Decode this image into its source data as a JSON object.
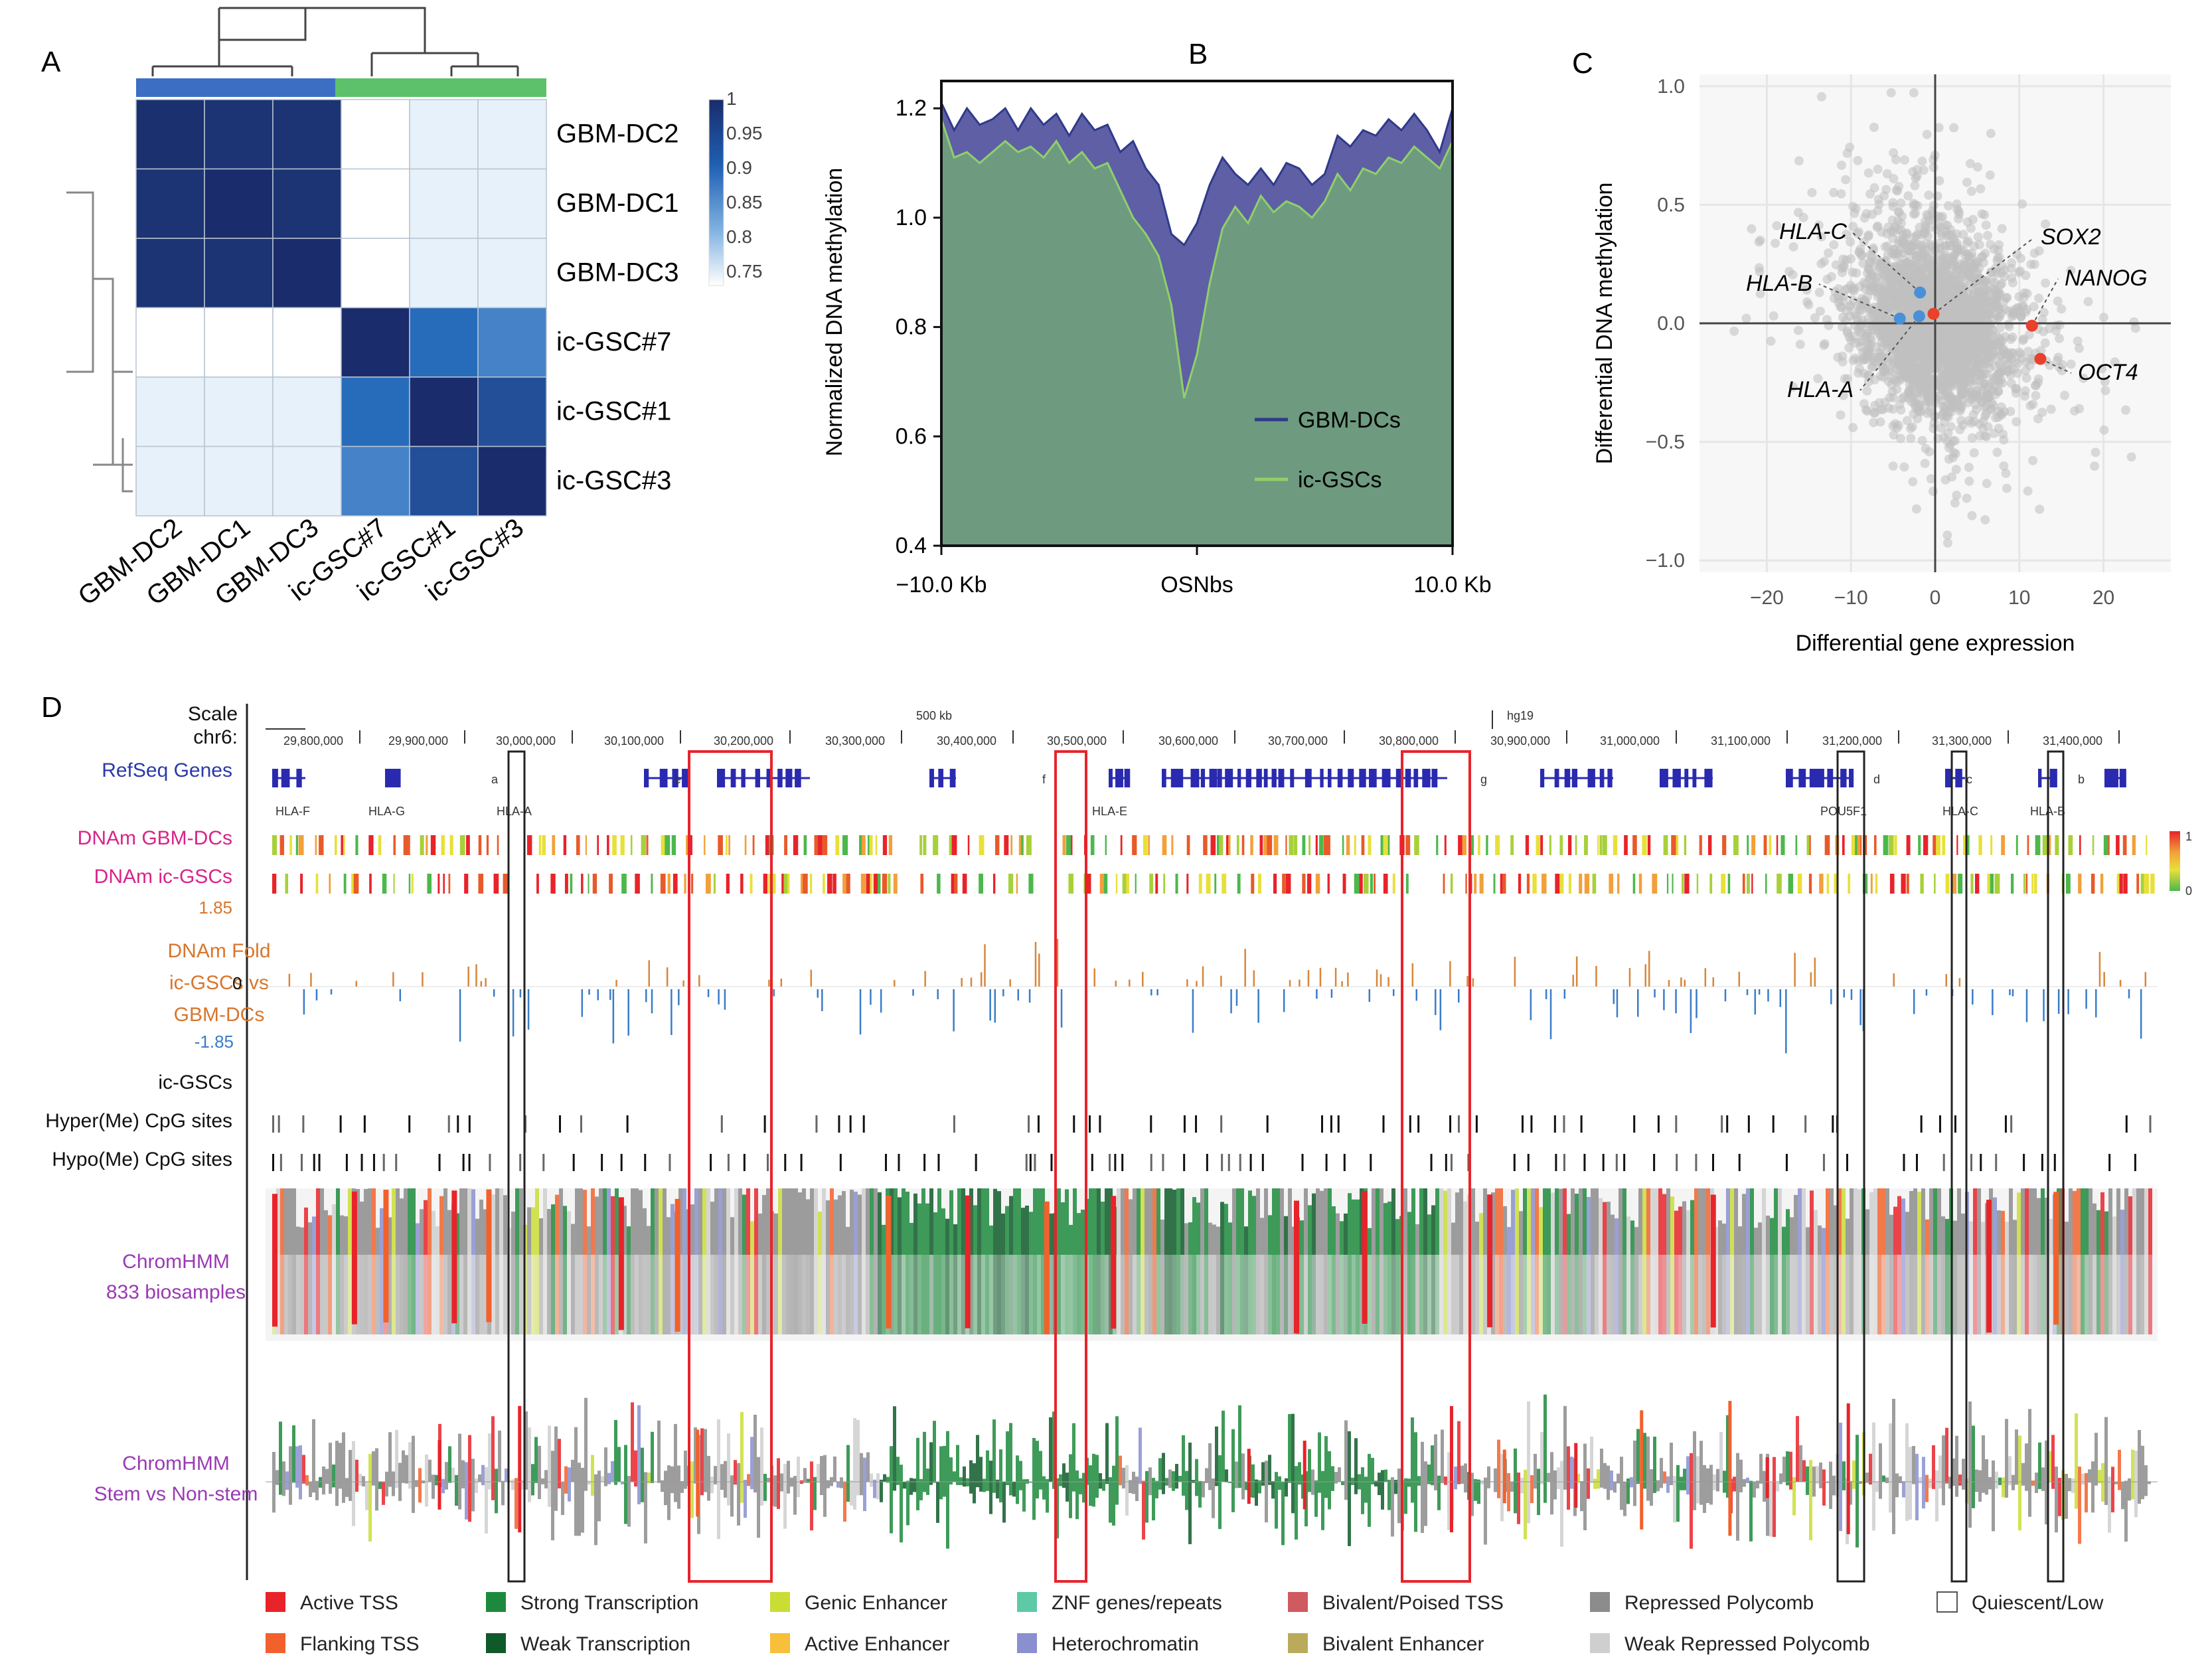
{
  "panel_labels": {
    "a": "A",
    "b": "B",
    "c": "C",
    "d": "D"
  },
  "chart_data": [
    {
      "panel": "A",
      "type": "heatmap",
      "title": "",
      "rows": [
        "GBM-DC2",
        "GBM-DC1",
        "GBM-DC3",
        "ic-GSC#7",
        "ic-GSC#1",
        "ic-GSC#3"
      ],
      "columns": [
        "GBM-DC2",
        "GBM-DC1",
        "GBM-DC3",
        "ic-GSC#7",
        "ic-GSC#1",
        "ic-GSC#3"
      ],
      "values": [
        [
          0.995,
          0.99,
          0.99,
          0.72,
          0.76,
          0.76
        ],
        [
          0.99,
          1.0,
          0.99,
          0.72,
          0.76,
          0.76
        ],
        [
          0.99,
          0.99,
          1.0,
          0.72,
          0.76,
          0.76
        ],
        [
          0.72,
          0.72,
          0.72,
          1.0,
          0.91,
          0.89
        ],
        [
          0.76,
          0.76,
          0.76,
          0.91,
          1.0,
          0.95
        ],
        [
          0.76,
          0.76,
          0.76,
          0.89,
          0.95,
          1.0
        ]
      ],
      "group_colors": [
        "#3c6fc4",
        "#5cc16a"
      ],
      "colorbar": {
        "ticks": [
          "1",
          "0.95",
          "0.9",
          "0.85",
          "0.8",
          "0.75"
        ],
        "range": [
          0.72,
          1.0
        ]
      }
    },
    {
      "panel": "B",
      "type": "area",
      "title": "B",
      "xlabel": "",
      "ylabel": "Normalized DNA methylation",
      "xtick_labels": [
        "−10.0 Kb",
        "OSNbs",
        "10.0 Kb"
      ],
      "xlim": [
        -10,
        10
      ],
      "ylim": [
        0.4,
        1.25
      ],
      "yticks": [
        "1.2",
        "1.0",
        "0.8",
        "0.6",
        "0.4"
      ],
      "x": [
        -10,
        -9.5,
        -9,
        -8.5,
        -8,
        -7.5,
        -7,
        -6.5,
        -6,
        -5.5,
        -5,
        -4.5,
        -4,
        -3.5,
        -3,
        -2.5,
        -2,
        -1.5,
        -1,
        -0.5,
        0,
        0.5,
        1,
        1.5,
        2,
        2.5,
        3,
        3.5,
        4,
        4.5,
        5,
        5.5,
        6,
        6.5,
        7,
        7.5,
        8,
        8.5,
        9,
        9.5,
        10
      ],
      "series": [
        {
          "name": "GBM-DCs",
          "color": "#2f3a8a",
          "values": [
            1.21,
            1.16,
            1.2,
            1.17,
            1.18,
            1.2,
            1.16,
            1.2,
            1.17,
            1.19,
            1.15,
            1.19,
            1.16,
            1.17,
            1.12,
            1.14,
            1.09,
            1.06,
            0.97,
            0.95,
            0.99,
            1.06,
            1.11,
            1.08,
            1.06,
            1.09,
            1.06,
            1.1,
            1.09,
            1.06,
            1.08,
            1.15,
            1.13,
            1.16,
            1.15,
            1.18,
            1.16,
            1.19,
            1.16,
            1.12,
            1.2
          ]
        },
        {
          "name": "ic-GSCs",
          "color": "#8fd06a",
          "values": [
            1.18,
            1.11,
            1.12,
            1.1,
            1.12,
            1.14,
            1.12,
            1.13,
            1.11,
            1.14,
            1.1,
            1.12,
            1.09,
            1.1,
            1.05,
            1.0,
            0.97,
            0.93,
            0.84,
            0.67,
            0.75,
            0.88,
            0.98,
            1.02,
            0.99,
            1.04,
            1.01,
            1.03,
            1.02,
            1.0,
            1.03,
            1.08,
            1.05,
            1.09,
            1.08,
            1.11,
            1.1,
            1.13,
            1.11,
            1.09,
            1.14
          ]
        }
      ],
      "legend": "bottom-right"
    },
    {
      "panel": "C",
      "type": "scatter",
      "xlabel": "Differential gene expression",
      "ylabel": "Differential DNA methylation",
      "xlim": [
        -28,
        28
      ],
      "ylim": [
        -1.05,
        1.05
      ],
      "xticks": [
        "−20",
        "−10",
        "0",
        "10",
        "20"
      ],
      "yticks": [
        "1.0",
        "0.5",
        "0.0",
        "−0.5",
        "−1.0"
      ],
      "highlighted": [
        {
          "label": "HLA-C",
          "x": -1.8,
          "y": 0.13,
          "color": "#4a90d9"
        },
        {
          "label": "HLA-B",
          "x": -4.2,
          "y": 0.02,
          "color": "#4a90d9"
        },
        {
          "label": "HLA-A",
          "x": -1.9,
          "y": 0.03,
          "color": "#4a90d9"
        },
        {
          "label": "SOX2",
          "x": -0.2,
          "y": 0.04,
          "color": "#e8412c"
        },
        {
          "label": "NANOG",
          "x": 11.5,
          "y": -0.01,
          "color": "#e8412c"
        },
        {
          "label": "OCT4",
          "x": 12.5,
          "y": -0.15,
          "color": "#e8412c"
        }
      ],
      "background_points": "dense grey cloud centred at (0, 0)"
    }
  ],
  "panel_d": {
    "scale_label": "Scale",
    "chr_label": "chr6:",
    "scale_bar": "500 kb",
    "assembly": "hg19",
    "coordinates": [
      "29,800,000",
      "29,900,000",
      "30,000,000",
      "30,100,000",
      "30,200,000",
      "30,300,000",
      "30,400,000",
      "30,500,000",
      "30,600,000",
      "30,700,000",
      "30,800,000",
      "30,900,000",
      "31,000,000",
      "31,100,000",
      "31,200,000",
      "31,300,000",
      "31,400,000"
    ],
    "box_letters": [
      "a",
      "e",
      "f",
      "g",
      "d",
      "c",
      "b"
    ],
    "gene_names": [
      "HLA-F",
      "HLA-G",
      "HLA-A",
      "HLA-E",
      "POU5F1",
      "HLA-C",
      "HLA-B"
    ],
    "tracks": {
      "refseq": "RefSeq Genes",
      "dnam_gbm": "DNAm GBM-DCs",
      "dnam_gsc": "DNAm ic-GSCs",
      "fold_top": "1.85",
      "fold_line1": "DNAm Fold",
      "fold_line2": "ic-GSCs vs",
      "fold_line3": "GBM-DCs",
      "fold_zero": "0",
      "fold_bottom": "-1.85",
      "icgsc_header": "ic-GSCs",
      "hyper": "Hyper(Me) CpG sites",
      "hypo": "Hypo(Me) CpG sites",
      "chromhmm1_line1": "ChromHMM",
      "chromhmm1_line2": "833 biosamples",
      "chromhmm2_line1": "ChromHMM",
      "chromhmm2_line2": "Stem vs Non-stem"
    },
    "colorbar_ticks": [
      "1",
      "0"
    ],
    "legend": [
      {
        "label": "Active TSS",
        "color": "#e8232a"
      },
      {
        "label": "Flanking TSS",
        "color": "#f2612c"
      },
      {
        "label": "Strong Transcription",
        "color": "#1c8a3c"
      },
      {
        "label": "Weak Transcription",
        "color": "#0f5a2a"
      },
      {
        "label": "Genic Enhancer",
        "color": "#c9dd35"
      },
      {
        "label": "Active Enhancer",
        "color": "#f7bf3a"
      },
      {
        "label": "ZNF genes/repeats",
        "color": "#5ec9a6"
      },
      {
        "label": "Heterochromatin",
        "color": "#8a8fcf"
      },
      {
        "label": "Bivalent/Poised TSS",
        "color": "#cf5a5f"
      },
      {
        "label": "Bivalent Enhancer",
        "color": "#b9ab5b"
      },
      {
        "label": "Repressed Polycomb",
        "color": "#8c8c8c"
      },
      {
        "label": "Weak Repressed Polycomb",
        "color": "#cfcfcf"
      },
      {
        "label": "Quiescent/Low",
        "color": "#ffffff"
      }
    ]
  }
}
